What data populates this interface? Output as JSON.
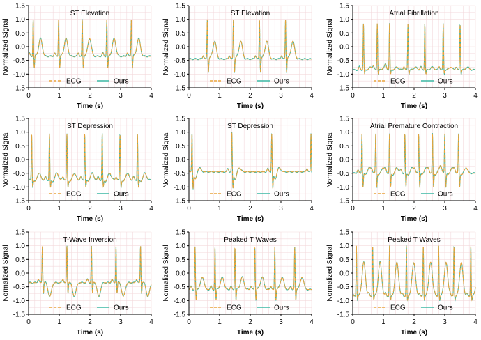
{
  "colors": {
    "ecg": "#E8A33B",
    "ours": "#3BB7A3",
    "grid": "#F3D9DC",
    "axis": "#000000"
  },
  "chart_data": [
    {
      "type": "line",
      "title": "ST Elevation",
      "xlabel": "Time (s)",
      "ylabel": "Normalized Signal",
      "xlim": [
        0,
        4
      ],
      "ylim": [
        -1.5,
        1.5
      ],
      "xticks": [
        "0",
        "1",
        "2",
        "3",
        "4"
      ],
      "yticks": [
        "1.5",
        "1.0",
        "0.5",
        "0.0",
        "-0.5",
        "-1.0",
        "-1.5"
      ],
      "grid": true,
      "legend": "bottom",
      "series": [
        {
          "name": "ECG",
          "style": "dashed"
        },
        {
          "name": "Ours",
          "style": "solid"
        }
      ],
      "waveform": {
        "baseline": -0.35,
        "heart_rate_bpm": 70,
        "beat_times": [
          0.15,
          0.98,
          1.75,
          2.55,
          3.35
        ],
        "r_peak": 1.0,
        "t_wave": 0.3,
        "st_segment": -0.3,
        "s_depth": -0.8
      }
    },
    {
      "type": "line",
      "title": "ST Elevation",
      "xlabel": "Time (s)",
      "ylabel": "Normalized Signal",
      "xlim": [
        0,
        4
      ],
      "ylim": [
        -1.5,
        1.5
      ],
      "xticks": [
        "0",
        "1",
        "2",
        "3",
        "4"
      ],
      "yticks": [
        "1.5",
        "1.0",
        "0.5",
        "0.0",
        "-0.5",
        "-1.0",
        "-1.5"
      ],
      "grid": true,
      "legend": "bottom",
      "series": [
        {
          "name": "ECG",
          "style": "dashed"
        },
        {
          "name": "Ours",
          "style": "solid"
        }
      ],
      "waveform": {
        "baseline": -0.45,
        "heart_rate_bpm": 72,
        "beat_times": [
          0.6,
          1.45,
          2.3,
          3.15
        ],
        "r_peak": 1.0,
        "t_wave": 0.2,
        "st_segment": -0.35,
        "s_depth": -0.95
      }
    },
    {
      "type": "line",
      "title": "Atrial Fibrillation",
      "xlabel": "Time (s)",
      "ylabel": "Normalized Signal",
      "xlim": [
        0,
        4
      ],
      "ylim": [
        -1.5,
        1.5
      ],
      "xticks": [
        "0",
        "1",
        "2",
        "3",
        "4"
      ],
      "yticks": [
        "1.5",
        "1.0",
        "0.5",
        "0.0",
        "-0.5",
        "-1.0",
        "-1.5"
      ],
      "grid": true,
      "legend": "bottom",
      "series": [
        {
          "name": "ECG",
          "style": "dashed"
        },
        {
          "name": "Ours",
          "style": "solid"
        }
      ],
      "waveform": {
        "baseline": -0.85,
        "heart_rate_bpm": 130,
        "beat_times": [
          0.35,
          0.8,
          1.2,
          1.8,
          2.35,
          2.95,
          3.5
        ],
        "r_peak": 0.85,
        "t_wave": -0.75,
        "st_segment": -0.85,
        "s_depth": -1.0
      }
    },
    {
      "type": "line",
      "title": "ST Depression",
      "xlabel": "Time (s)",
      "ylabel": "Normalized Signal",
      "xlim": [
        0,
        4
      ],
      "ylim": [
        -1.5,
        1.5
      ],
      "xticks": [
        "0",
        "1",
        "2",
        "3",
        "4"
      ],
      "yticks": [
        "1.5",
        "1.0",
        "0.5",
        "0.0",
        "-0.5",
        "-1.0",
        "-1.5"
      ],
      "grid": true,
      "legend": "bottom",
      "series": [
        {
          "name": "ECG",
          "style": "dashed"
        },
        {
          "name": "Ours",
          "style": "solid"
        }
      ],
      "waveform": {
        "baseline": -0.75,
        "heart_rate_bpm": 100,
        "beat_times": [
          0.1,
          0.68,
          1.25,
          1.83,
          2.4,
          2.98,
          3.55
        ],
        "r_peak": 0.95,
        "t_wave": -0.5,
        "st_segment": -0.85,
        "s_depth": -1.0
      }
    },
    {
      "type": "line",
      "title": "ST Depression",
      "xlabel": "Time (s)",
      "ylabel": "Normalized Signal",
      "xlim": [
        0,
        4
      ],
      "ylim": [
        -1.5,
        1.5
      ],
      "xticks": [
        "0",
        "1",
        "2",
        "3",
        "4"
      ],
      "yticks": [
        "1.5",
        "1.0",
        "0.5",
        "0.0",
        "-0.5",
        "-1.0",
        "-1.5"
      ],
      "grid": true,
      "legend": "bottom",
      "series": [
        {
          "name": "ECG",
          "style": "dashed"
        },
        {
          "name": "Ours",
          "style": "solid"
        }
      ],
      "waveform": {
        "baseline": -0.45,
        "heart_rate_bpm": 46,
        "beat_times": [
          0.1,
          1.4,
          2.7,
          3.98
        ],
        "r_peak": 1.0,
        "t_wave": -0.3,
        "st_segment": -0.9,
        "s_depth": -1.0
      }
    },
    {
      "type": "line",
      "title": "Atrial Premature Contraction",
      "xlabel": "Time (s)",
      "ylabel": "Normalized Signal",
      "xlim": [
        0,
        4
      ],
      "ylim": [
        -1.5,
        1.5
      ],
      "xticks": [
        "0",
        "1",
        "2",
        "3",
        "4"
      ],
      "yticks": [
        "1.5",
        "1.0",
        "0.5",
        "0.0",
        "-0.5",
        "-1.0",
        "-1.5"
      ],
      "grid": true,
      "legend": "bottom",
      "series": [
        {
          "name": "ECG",
          "style": "dashed"
        },
        {
          "name": "Ours",
          "style": "solid"
        }
      ],
      "waveform": {
        "baseline": -0.5,
        "heart_rate_bpm": 125,
        "beat_times": [
          0.3,
          0.75,
          1.2,
          1.7,
          2.15,
          2.6,
          3.0,
          3.45
        ],
        "r_peak": 0.95,
        "t_wave": -0.3,
        "st_segment": -0.6,
        "s_depth": -1.0
      }
    },
    {
      "type": "line",
      "title": "T-Wave Inversion",
      "xlabel": "Time (s)",
      "ylabel": "Normalized Signal",
      "xlim": [
        0,
        4
      ],
      "ylim": [
        -1.5,
        1.5
      ],
      "xticks": [
        "0",
        "1",
        "2",
        "3",
        "4"
      ],
      "yticks": [
        "1.5",
        "1.0",
        "0.5",
        "0.0",
        "-0.5",
        "-1.0",
        "-1.5"
      ],
      "grid": true,
      "legend": "bottom",
      "series": [
        {
          "name": "ECG",
          "style": "dashed"
        },
        {
          "name": "Ours",
          "style": "solid"
        }
      ],
      "waveform": {
        "baseline": -0.35,
        "heart_rate_bpm": 75,
        "beat_times": [
          0.45,
          1.25,
          2.05,
          2.85,
          3.65
        ],
        "r_peak": 1.0,
        "t_wave": -0.85,
        "st_segment": -0.3,
        "s_depth": -0.75
      }
    },
    {
      "type": "line",
      "title": "Peaked T Waves",
      "xlabel": "Time (s)",
      "ylabel": "Normalized Signal",
      "xlim": [
        0,
        4
      ],
      "ylim": [
        -1.5,
        1.5
      ],
      "xticks": [
        "0",
        "1",
        "2",
        "3",
        "4"
      ],
      "yticks": [
        "1.5",
        "1.0",
        "0.5",
        "0.0",
        "-0.5",
        "-1.0",
        "-1.5"
      ],
      "grid": true,
      "legend": "bottom",
      "series": [
        {
          "name": "ECG",
          "style": "dashed"
        },
        {
          "name": "Ours",
          "style": "solid"
        }
      ],
      "waveform": {
        "baseline": -0.6,
        "heart_rate_bpm": 90,
        "beat_times": [
          0.2,
          0.85,
          1.5,
          2.15,
          2.8,
          3.45
        ],
        "r_peak": 0.95,
        "t_wave": -0.15,
        "st_segment": -0.55,
        "s_depth": -1.0
      }
    },
    {
      "type": "line",
      "title": "Peaked T Waves",
      "xlabel": "Time (s)",
      "ylabel": "Normalized Signal",
      "xlim": [
        0,
        4
      ],
      "ylim": [
        -1.5,
        1.5
      ],
      "xticks": [
        "0",
        "1",
        "2",
        "3",
        "4"
      ],
      "yticks": [
        "1.5",
        "1.0",
        "0.5",
        "0.0",
        "-0.5",
        "-1.0",
        "-1.5"
      ],
      "grid": true,
      "legend": "bottom",
      "series": [
        {
          "name": "ECG",
          "style": "dashed"
        },
        {
          "name": "Ours",
          "style": "solid"
        }
      ],
      "waveform": {
        "baseline": -0.85,
        "heart_rate_bpm": 105,
        "beat_times": [
          0.12,
          0.65,
          1.2,
          1.75,
          2.3,
          2.8,
          3.3,
          3.85
        ],
        "r_peak": 1.0,
        "t_wave": 0.4,
        "st_segment": -0.8,
        "s_depth": -1.0
      }
    }
  ]
}
